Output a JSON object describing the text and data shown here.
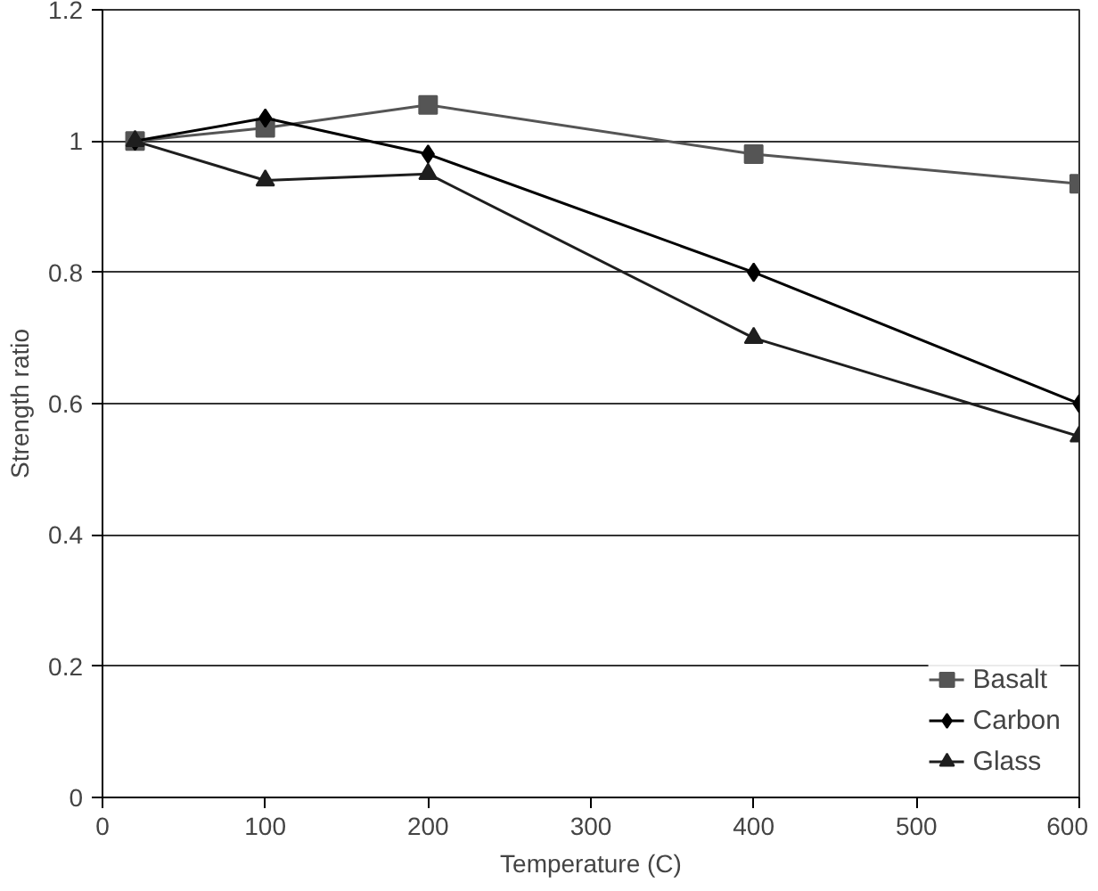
{
  "chart_data": {
    "type": "line",
    "xlabel": "Temperature (C)",
    "ylabel": "Strength ratio",
    "x": [
      20,
      100,
      200,
      400,
      600
    ],
    "series": [
      {
        "name": "Basalt",
        "color": "#555555",
        "marker": "square",
        "values": [
          1.0,
          1.02,
          1.055,
          0.98,
          0.935
        ]
      },
      {
        "name": "Carbon",
        "color": "#000000",
        "marker": "diamond",
        "values": [
          1.0,
          1.035,
          0.98,
          0.8,
          0.6
        ]
      },
      {
        "name": "Glass",
        "color": "#1e1e1e",
        "marker": "triangle",
        "values": [
          1.0,
          0.94,
          0.95,
          0.7,
          0.55
        ]
      }
    ],
    "xlim": [
      0,
      600
    ],
    "xticks": [
      0,
      100,
      200,
      300,
      400,
      500,
      600
    ],
    "ylim": [
      0,
      1.2
    ],
    "yticks": [
      0,
      0.2,
      0.4,
      0.6,
      0.8,
      1,
      1.2
    ],
    "grid": "y",
    "legend": "bottom right",
    "line_style": "solid"
  }
}
